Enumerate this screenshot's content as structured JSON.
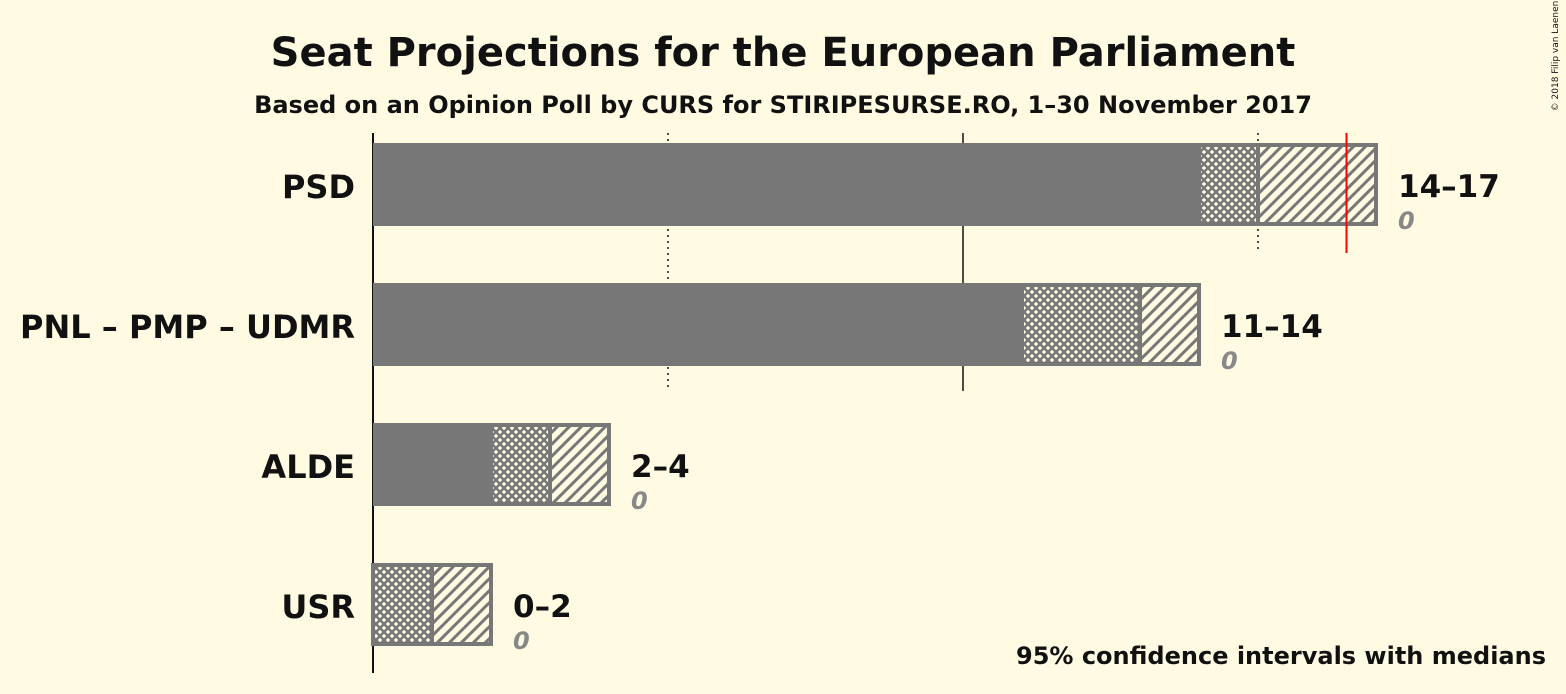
{
  "copyright": "© 2018 Filip van Laenen",
  "chart_data": {
    "type": "bar",
    "title": "Seat Projections for the European Parliament",
    "subtitle": "Based on an Opinion Poll by CURS for STIRIPESURSE.RO, 1–30 November 2017",
    "note": "95% confidence intervals with medians",
    "xlim": [
      0,
      17
    ],
    "gridlines": [
      5,
      10,
      15
    ],
    "majority_line": 16.5,
    "colors": {
      "bar": "#777777",
      "outline": "#777777",
      "majority": "#ff0000"
    },
    "categories": [
      "PSD",
      "PNL – PMP – UDMR",
      "ALDE",
      "USR"
    ],
    "parties": [
      {
        "name": "PSD",
        "ci95_low": 14,
        "ci80_high": 15,
        "high": 17,
        "range_label": "14–17",
        "last_result": "0"
      },
      {
        "name": "PNL – PMP – UDMR",
        "ci95_low": 11,
        "ci80_high": 13,
        "high": 14,
        "range_label": "11–14",
        "last_result": "0"
      },
      {
        "name": "ALDE",
        "ci95_low": 2,
        "ci80_high": 3,
        "high": 4,
        "range_label": "2–4",
        "last_result": "0"
      },
      {
        "name": "USR",
        "ci95_low": 0,
        "ci80_high": 1,
        "high": 2,
        "range_label": "0–2",
        "last_result": "0"
      }
    ]
  }
}
